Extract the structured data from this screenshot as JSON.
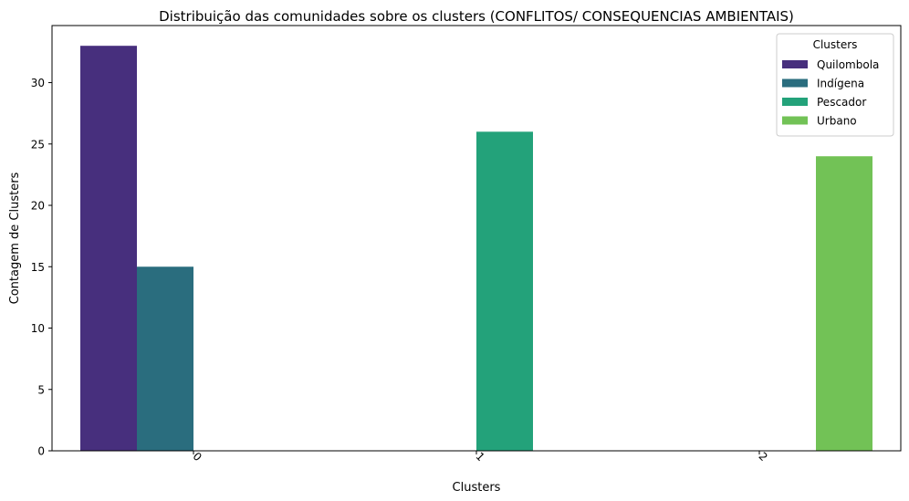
{
  "chart_data": {
    "type": "bar",
    "title": "Distribuição das comunidades sobre os clusters (CONFLITOS/ CONSEQUENCIAS AMBIENTAIS)",
    "xlabel": "Clusters",
    "ylabel": "Contagem de Clusters",
    "categories": [
      "0",
      "1",
      "2"
    ],
    "ylim": [
      0,
      34.65
    ],
    "yticks": [
      0,
      5,
      10,
      15,
      20,
      25,
      30
    ],
    "xtick_rotation": 45,
    "grid": false,
    "legend": {
      "title": "Clusters",
      "position": "top-right"
    },
    "series": [
      {
        "name": "Quilombola",
        "color": "#472f7d",
        "values": [
          33,
          null,
          null
        ]
      },
      {
        "name": "Indígena",
        "color": "#2a6d7e",
        "values": [
          15,
          null,
          null
        ]
      },
      {
        "name": "Pescador",
        "color": "#23a27a",
        "values": [
          null,
          26,
          null
        ]
      },
      {
        "name": "Urbano",
        "color": "#72c256",
        "values": [
          null,
          null,
          24
        ]
      }
    ]
  }
}
